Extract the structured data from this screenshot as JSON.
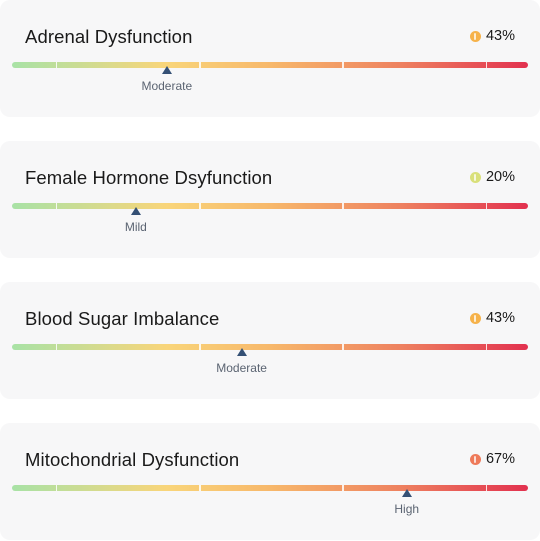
{
  "cards": [
    {
      "title": "Adrenal Dysfunction",
      "score": "43%",
      "level_label": "Moderate",
      "level_fraction": 0.3,
      "icon": "info-circle-icon",
      "icon_color": "#f6b24a"
    },
    {
      "title": "Female Hormone Dsyfunction",
      "score": "20%",
      "level_label": "Mild",
      "level_fraction": 0.24,
      "icon": "info-circle-icon",
      "icon_color": "#d9e07a"
    },
    {
      "title": "Blood Sugar Imbalance",
      "score": "43%",
      "level_label": "Moderate",
      "level_fraction": 0.445,
      "icon": "info-circle-icon",
      "icon_color": "#f6b24a"
    },
    {
      "title": "Mitochondrial Dysfunction",
      "score": "67%",
      "level_label": "High",
      "level_fraction": 0.765,
      "icon": "info-circle-icon",
      "icon_color": "#ee7a5a"
    }
  ]
}
